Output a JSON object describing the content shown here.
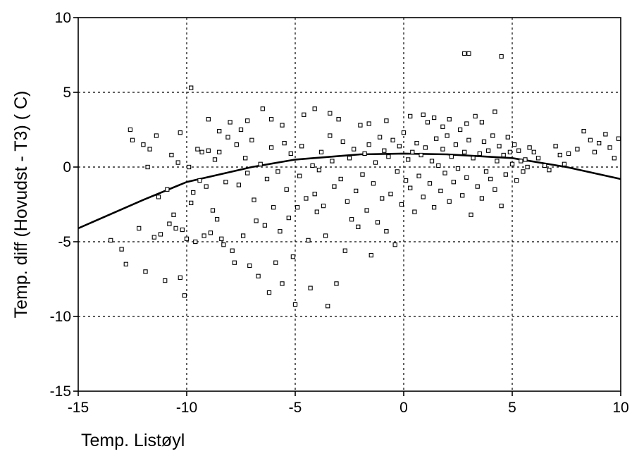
{
  "chart_data": {
    "type": "scatter",
    "xlabel": "Temp. Listøyl",
    "ylabel": "Temp. diff (Hovudst - T3) ( C)",
    "xlim": [
      -15,
      10
    ],
    "ylim": [
      -15,
      10
    ],
    "xticks": [
      -15,
      -10,
      -5,
      0,
      5,
      10
    ],
    "yticks": [
      -15,
      -10,
      -5,
      0,
      5,
      10
    ],
    "xtick_labels": [
      "-15",
      "-10",
      "-5",
      "0",
      "5",
      "10"
    ],
    "ytick_labels": [
      "-15",
      "-10",
      "-5",
      "0",
      "5",
      "10"
    ],
    "grid": true,
    "fit_curve": {
      "type": "quadratic",
      "points": [
        [
          -15,
          -4.1
        ],
        [
          -12,
          -2.2
        ],
        [
          -10,
          -1.0
        ],
        [
          -7,
          0.0
        ],
        [
          -5,
          0.5
        ],
        [
          -2,
          0.85
        ],
        [
          0,
          0.9
        ],
        [
          2,
          0.85
        ],
        [
          5,
          0.6
        ],
        [
          7.5,
          0.0
        ],
        [
          10,
          -0.8
        ]
      ]
    },
    "series": [
      {
        "points": [
          [
            -13.5,
            -4.9
          ],
          [
            -13.0,
            -5.5
          ],
          [
            -12.8,
            -6.5
          ],
          [
            -12.6,
            2.5
          ],
          [
            -12.5,
            1.8
          ],
          [
            -12.2,
            -4.1
          ],
          [
            -12.0,
            1.5
          ],
          [
            -11.9,
            -7.0
          ],
          [
            -11.8,
            0.0
          ],
          [
            -11.7,
            1.2
          ],
          [
            -11.5,
            -4.7
          ],
          [
            -11.3,
            -2.0
          ],
          [
            -11.2,
            -4.5
          ],
          [
            -11.0,
            -7.6
          ],
          [
            -10.9,
            -1.5
          ],
          [
            -10.8,
            -3.8
          ],
          [
            -10.7,
            0.8
          ],
          [
            -10.6,
            -3.2
          ],
          [
            -10.5,
            -4.1
          ],
          [
            -10.4,
            0.3
          ],
          [
            -10.3,
            -7.4
          ],
          [
            -10.2,
            -4.2
          ],
          [
            -10.1,
            -8.6
          ],
          [
            -10.0,
            -4.8
          ],
          [
            -9.9,
            0.0
          ],
          [
            -9.8,
            -2.4
          ],
          [
            -9.8,
            5.3
          ],
          [
            -9.7,
            -1.7
          ],
          [
            -9.6,
            -5.0
          ],
          [
            -9.5,
            1.2
          ],
          [
            -9.4,
            -0.9
          ],
          [
            -9.3,
            1.0
          ],
          [
            -9.2,
            -4.6
          ],
          [
            -9.1,
            -1.3
          ],
          [
            -9.0,
            1.1
          ],
          [
            -8.9,
            -4.4
          ],
          [
            -8.8,
            -2.9
          ],
          [
            -8.7,
            0.5
          ],
          [
            -8.6,
            -3.5
          ],
          [
            -8.5,
            1.0
          ],
          [
            -8.4,
            -4.8
          ],
          [
            -8.3,
            -5.2
          ],
          [
            -8.2,
            -1.0
          ],
          [
            -8.1,
            2.0
          ],
          [
            -8.0,
            3.0
          ],
          [
            -7.9,
            -5.6
          ],
          [
            -7.8,
            -6.4
          ],
          [
            -7.7,
            1.5
          ],
          [
            -7.6,
            -1.2
          ],
          [
            -7.5,
            2.5
          ],
          [
            -7.4,
            -4.6
          ],
          [
            -7.3,
            0.6
          ],
          [
            -7.2,
            -0.4
          ],
          [
            -7.1,
            -6.6
          ],
          [
            -7.0,
            1.8
          ],
          [
            -6.9,
            -2.2
          ],
          [
            -6.8,
            -3.6
          ],
          [
            -6.7,
            -7.3
          ],
          [
            -6.6,
            0.2
          ],
          [
            -6.5,
            3.9
          ],
          [
            -6.4,
            -3.9
          ],
          [
            -6.3,
            -0.8
          ],
          [
            -6.2,
            -8.4
          ],
          [
            -6.1,
            1.3
          ],
          [
            -6.0,
            -2.7
          ],
          [
            -5.9,
            -6.4
          ],
          [
            -5.8,
            -0.3
          ],
          [
            -5.7,
            -4.3
          ],
          [
            -5.6,
            -7.8
          ],
          [
            -5.5,
            1.6
          ],
          [
            -5.4,
            -1.5
          ],
          [
            -5.3,
            -3.4
          ],
          [
            -5.2,
            0.9
          ],
          [
            -5.1,
            -6.0
          ],
          [
            -5.0,
            -9.2
          ],
          [
            -4.9,
            -2.7
          ],
          [
            -4.8,
            -0.6
          ],
          [
            -4.7,
            1.4
          ],
          [
            -4.6,
            3.5
          ],
          [
            -4.5,
            -2.1
          ],
          [
            -4.4,
            -4.9
          ],
          [
            -4.3,
            -8.1
          ],
          [
            -4.2,
            0.1
          ],
          [
            -4.1,
            -1.8
          ],
          [
            -4.0,
            -3.0
          ],
          [
            -3.9,
            -0.2
          ],
          [
            -3.8,
            1.0
          ],
          [
            -3.7,
            -2.6
          ],
          [
            -3.6,
            -4.6
          ],
          [
            -3.5,
            -9.3
          ],
          [
            -3.4,
            2.1
          ],
          [
            -3.3,
            0.4
          ],
          [
            -3.2,
            -1.3
          ],
          [
            -3.1,
            -7.8
          ],
          [
            -3.0,
            3.2
          ],
          [
            -2.9,
            -0.8
          ],
          [
            -2.8,
            1.7
          ],
          [
            -2.7,
            -5.6
          ],
          [
            -2.6,
            -2.3
          ],
          [
            -2.5,
            0.6
          ],
          [
            -2.4,
            -3.5
          ],
          [
            -2.3,
            1.2
          ],
          [
            -2.2,
            -1.6
          ],
          [
            -2.1,
            -4.0
          ],
          [
            -2.0,
            2.8
          ],
          [
            -1.9,
            -0.5
          ],
          [
            -1.8,
            0.9
          ],
          [
            -1.7,
            -2.9
          ],
          [
            -1.6,
            1.5
          ],
          [
            -1.5,
            -5.9
          ],
          [
            -1.4,
            -1.1
          ],
          [
            -1.3,
            0.3
          ],
          [
            -1.2,
            -3.7
          ],
          [
            -1.1,
            2.0
          ],
          [
            -1.0,
            -2.1
          ],
          [
            -0.9,
            1.1
          ],
          [
            -0.8,
            -4.3
          ],
          [
            -0.7,
            0.7
          ],
          [
            -0.6,
            -1.8
          ],
          [
            -0.5,
            1.8
          ],
          [
            -0.4,
            -5.2
          ],
          [
            -0.3,
            -0.3
          ],
          [
            -0.2,
            1.4
          ],
          [
            -0.1,
            -2.5
          ],
          [
            0.0,
            2.3
          ],
          [
            0.1,
            -0.9
          ],
          [
            0.2,
            0.5
          ],
          [
            0.3,
            -1.4
          ],
          [
            0.4,
            1.0
          ],
          [
            0.5,
            -3.0
          ],
          [
            0.6,
            1.6
          ],
          [
            0.7,
            -0.6
          ],
          [
            0.8,
            0.8
          ],
          [
            0.9,
            -2.0
          ],
          [
            1.0,
            1.3
          ],
          [
            1.1,
            3.0
          ],
          [
            1.2,
            -1.1
          ],
          [
            1.3,
            0.4
          ],
          [
            1.4,
            -2.7
          ],
          [
            1.5,
            1.9
          ],
          [
            1.6,
            0.1
          ],
          [
            1.7,
            -1.6
          ],
          [
            1.8,
            1.2
          ],
          [
            1.9,
            -0.4
          ],
          [
            2.0,
            2.1
          ],
          [
            2.1,
            -2.3
          ],
          [
            2.2,
            0.7
          ],
          [
            2.3,
            -1.0
          ],
          [
            2.4,
            1.5
          ],
          [
            2.5,
            -0.1
          ],
          [
            2.6,
            2.5
          ],
          [
            2.7,
            -1.9
          ],
          [
            2.8,
            1.0
          ],
          [
            2.9,
            -0.7
          ],
          [
            3.0,
            1.8
          ],
          [
            3.1,
            -3.2
          ],
          [
            3.2,
            0.6
          ],
          [
            3.3,
            3.4
          ],
          [
            3.4,
            -1.3
          ],
          [
            3.5,
            0.9
          ],
          [
            3.6,
            -2.1
          ],
          [
            3.7,
            1.7
          ],
          [
            3.8,
            -0.3
          ],
          [
            3.9,
            1.1
          ],
          [
            4.0,
            -0.8
          ],
          [
            4.1,
            2.1
          ],
          [
            4.2,
            -1.5
          ],
          [
            4.3,
            0.4
          ],
          [
            4.4,
            1.4
          ],
          [
            4.5,
            -2.6
          ],
          [
            4.6,
            0.8
          ],
          [
            4.7,
            -0.5
          ],
          [
            4.8,
            2.0
          ],
          [
            4.9,
            1.0
          ],
          [
            5.0,
            0.2
          ],
          [
            5.1,
            1.5
          ],
          [
            5.2,
            -0.9
          ],
          [
            5.3,
            1.1
          ],
          [
            5.4,
            0.4
          ],
          [
            5.5,
            -0.3
          ],
          [
            5.6,
            0.5
          ],
          [
            5.7,
            0.0
          ],
          [
            5.8,
            1.3
          ],
          [
            6.0,
            1.0
          ],
          [
            6.2,
            0.6
          ],
          [
            6.5,
            0.1
          ],
          [
            6.7,
            -0.2
          ],
          [
            7.0,
            1.4
          ],
          [
            7.2,
            0.8
          ],
          [
            7.4,
            0.2
          ],
          [
            7.6,
            0.9
          ],
          [
            8.0,
            1.2
          ],
          [
            8.3,
            2.4
          ],
          [
            8.6,
            1.8
          ],
          [
            8.8,
            1.0
          ],
          [
            9.0,
            1.6
          ],
          [
            9.3,
            2.2
          ],
          [
            9.5,
            1.3
          ],
          [
            9.7,
            0.6
          ],
          [
            9.9,
            1.9
          ],
          [
            0.9,
            3.5
          ],
          [
            1.4,
            3.3
          ],
          [
            2.1,
            3.2
          ],
          [
            3.6,
            3.0
          ],
          [
            4.2,
            3.7
          ],
          [
            -6.1,
            3.2
          ],
          [
            -5.6,
            2.8
          ],
          [
            -4.1,
            3.9
          ],
          [
            -3.4,
            3.6
          ],
          [
            -7.2,
            3.1
          ],
          [
            -8.5,
            2.4
          ],
          [
            -9.0,
            3.2
          ],
          [
            -10.3,
            2.3
          ],
          [
            -11.4,
            2.1
          ],
          [
            -1.6,
            2.9
          ],
          [
            -0.8,
            3.1
          ],
          [
            0.3,
            3.4
          ],
          [
            1.8,
            2.7
          ],
          [
            2.9,
            2.9
          ],
          [
            3.0,
            7.6
          ],
          [
            4.5,
            7.4
          ],
          [
            2.8,
            7.6
          ]
        ]
      }
    ]
  }
}
